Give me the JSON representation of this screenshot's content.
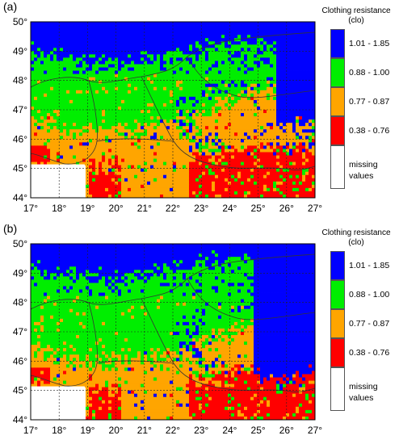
{
  "panels": [
    {
      "label": "(a)"
    },
    {
      "label": "(b)"
    }
  ],
  "map": {
    "lon_ticks": [
      "17°",
      "18°",
      "19°",
      "20°",
      "21°",
      "22°",
      "23°",
      "24°",
      "25°",
      "26°",
      "27°"
    ],
    "lat_ticks": [
      "50°",
      "49°",
      "48°",
      "47°",
      "46°",
      "45°",
      "44°"
    ]
  },
  "legend": {
    "title_line1": "Clothing resistance",
    "title_line2": "(clo)",
    "items": [
      {
        "label": "1.01 - 1.85",
        "color": "#0000ff"
      },
      {
        "label": "0.88 - 1.00",
        "color": "#00ee00"
      },
      {
        "label": "0.77 - 0.87",
        "color": "#ffa500"
      },
      {
        "label": "0.38 - 0.76",
        "color": "#ff0000"
      },
      {
        "label_line1": "missing",
        "label_line2": "values",
        "color": "#ffffff"
      }
    ]
  }
}
